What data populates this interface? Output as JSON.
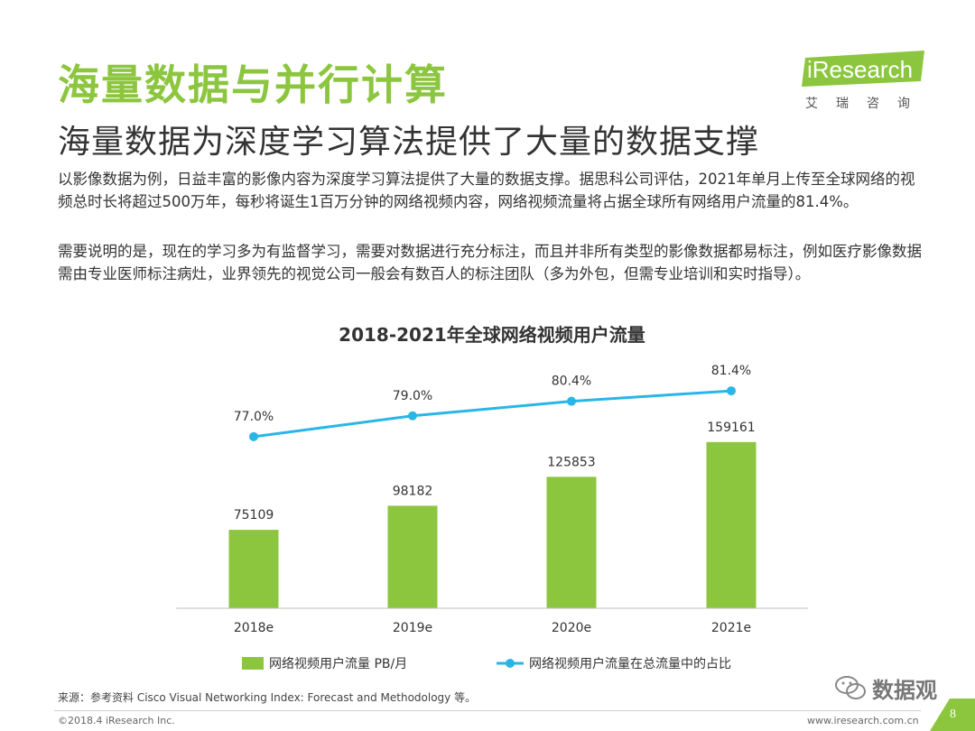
{
  "header": {
    "title": "海量数据与并行计算",
    "subtitle": "海量数据为深度学习算法提供了大量的数据支撑"
  },
  "logo": {
    "name": "iResearch",
    "cn": "艾瑞咨询",
    "color": "#8cc63f"
  },
  "body": {
    "para1": "以影像数据为例，日益丰富的影像内容为深度学习算法提供了大量的数据支撑。据思科公司评估，2021年单月上传至全球网络的视频总时长将超过500万年，每秒将诞生1百万分钟的网络视频内容，网络视频流量将占据全球所有网络用户流量的81.4%。",
    "para2": "需要说明的是，现在的学习多为有监督学习，需要对数据进行充分标注，而且并非所有类型的影像数据都易标注，例如医疗影像数据需由专业医师标注病灶，业界领先的视觉公司一般会有数百人的标注团队（多为外包，但需专业培训和实时指导）。"
  },
  "chart_data": {
    "type": "bar",
    "title": "2018-2021年全球网络视频用户流量",
    "categories": [
      "2018e",
      "2019e",
      "2020e",
      "2021e"
    ],
    "series": [
      {
        "name": "网络视频用户流量 PB/月",
        "type": "bar",
        "color": "#8cc63f",
        "values": [
          75109,
          98182,
          125853,
          159161
        ],
        "labels": [
          "75109",
          "98182",
          "125853",
          "159161"
        ]
      },
      {
        "name": "网络视频用户流量在总流量中的占比",
        "type": "line",
        "color": "#29b6e6",
        "values": [
          77.0,
          79.0,
          80.4,
          81.4
        ],
        "labels": [
          "77.0%",
          "79.0%",
          "80.4%",
          "81.4%"
        ]
      }
    ],
    "ylim_bar": [
      0,
      280000
    ],
    "ylim_line": [
      60,
      86
    ],
    "legend_position": "bottom",
    "grid": false
  },
  "footer": {
    "source": "来源：参考资料 Cisco Visual Networking Index: Forecast and Methodology 等。",
    "copyright": "©2018.4 iResearch Inc.",
    "website": "www.iresearch.com.cn",
    "page": "8",
    "watermark": "数据观"
  }
}
